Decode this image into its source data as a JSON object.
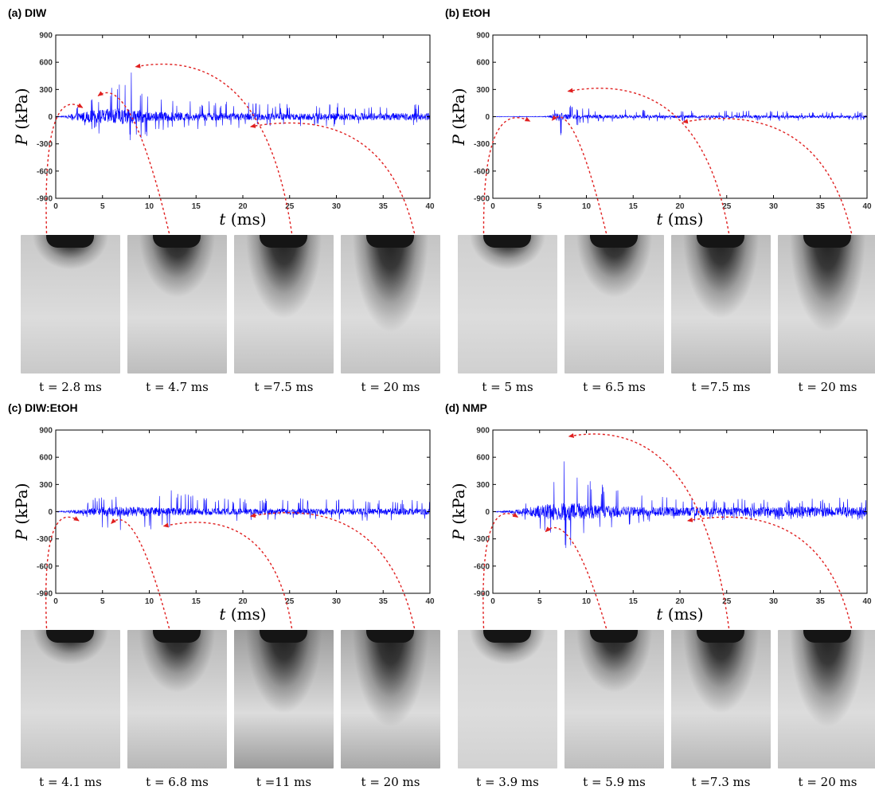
{
  "chart_data": [
    {
      "type": "line",
      "panel_label": "(a) DIW",
      "xlabel_var": "t",
      "xlabel_unit": "(ms)",
      "ylabel_var": "P",
      "ylabel_unit": "(kPa)",
      "xlim": [
        0,
        40
      ],
      "ylim": [
        -900,
        900
      ],
      "xticks": [
        0,
        5,
        10,
        15,
        20,
        25,
        30,
        35,
        40
      ],
      "yticks": [
        900,
        600,
        300,
        0,
        -300,
        -600,
        -900
      ],
      "line_color": "#0000ff",
      "arrow_color": "#e02020",
      "grid": false,
      "envelope": {
        "t": [
          0,
          1,
          2,
          3,
          4,
          5,
          6,
          7,
          8,
          9,
          10,
          12,
          15,
          20,
          25,
          30,
          35,
          40
        ],
        "max_peak": [
          5,
          10,
          100,
          180,
          250,
          280,
          350,
          420,
          540,
          300,
          250,
          200,
          180,
          160,
          150,
          150,
          140,
          140
        ],
        "min_peak": [
          -5,
          -10,
          -60,
          -120,
          -150,
          -250,
          -350,
          -450,
          -300,
          -250,
          -200,
          -180,
          -150,
          -130,
          -120,
          -110,
          -100,
          -100
        ],
        "noise": [
          3,
          8,
          40,
          60,
          70,
          80,
          90,
          90,
          80,
          70,
          60,
          50,
          45,
          40,
          40,
          40,
          40,
          40
        ]
      },
      "snapshots": [
        {
          "label": "t = 2.8 ms",
          "t": 2.8,
          "arrow_to": [
            3.2,
            100
          ]
        },
        {
          "label": "t = 4.7 ms",
          "t": 4.7,
          "arrow_to": [
            4.2,
            230
          ]
        },
        {
          "label": "t =7.5 ms",
          "t": 7.5,
          "arrow_to": [
            8.2,
            550
          ]
        },
        {
          "label": "t = 20 ms",
          "t": 20,
          "arrow_to": [
            20.5,
            -110
          ]
        }
      ]
    },
    {
      "type": "line",
      "panel_label": "(b) EtOH",
      "xlabel_var": "t",
      "xlabel_unit": "(ms)",
      "ylabel_var": "P",
      "ylabel_unit": "(kPa)",
      "xlim": [
        0,
        40
      ],
      "ylim": [
        -900,
        900
      ],
      "xticks": [
        0,
        5,
        10,
        15,
        20,
        25,
        30,
        35,
        40
      ],
      "yticks": [
        900,
        600,
        300,
        0,
        -300,
        -600,
        -900
      ],
      "line_color": "#0000ff",
      "arrow_color": "#e02020",
      "grid": false,
      "envelope": {
        "t": [
          0,
          5,
          6,
          6.5,
          7,
          7.5,
          8,
          9,
          10,
          12,
          15,
          20,
          25,
          30,
          35,
          40
        ],
        "max_peak": [
          5,
          5,
          10,
          60,
          200,
          240,
          150,
          120,
          100,
          90,
          80,
          70,
          70,
          70,
          60,
          60
        ],
        "min_peak": [
          -5,
          -5,
          -10,
          -100,
          -250,
          -200,
          -120,
          -100,
          -80,
          -60,
          -60,
          -50,
          -50,
          -50,
          -40,
          -40
        ],
        "noise": [
          3,
          3,
          6,
          30,
          45,
          40,
          30,
          25,
          22,
          20,
          18,
          16,
          16,
          16,
          15,
          15
        ]
      },
      "snapshots": [
        {
          "label": "t = 5 ms",
          "t": 5,
          "arrow_to": [
            4.3,
            -50
          ]
        },
        {
          "label": "t = 6.5 ms",
          "t": 6.5,
          "arrow_to": [
            6.0,
            -40
          ]
        },
        {
          "label": "t =7.5 ms",
          "t": 7.5,
          "arrow_to": [
            7.7,
            280
          ]
        },
        {
          "label": "t = 20 ms",
          "t": 20,
          "arrow_to": [
            20.0,
            -60
          ]
        }
      ]
    },
    {
      "type": "line",
      "panel_label": "(c) DIW:EtOH",
      "xlabel_var": "t",
      "xlabel_unit": "(ms)",
      "ylabel_var": "P",
      "ylabel_unit": "(kPa)",
      "xlim": [
        0,
        40
      ],
      "ylim": [
        -900,
        900
      ],
      "xticks": [
        0,
        5,
        10,
        15,
        20,
        25,
        30,
        35,
        40
      ],
      "yticks": [
        900,
        600,
        300,
        0,
        -300,
        -600,
        -900
      ],
      "line_color": "#0000ff",
      "arrow_color": "#e02020",
      "grid": false,
      "envelope": {
        "t": [
          0,
          1,
          2,
          3,
          4,
          5,
          6,
          7,
          8,
          10,
          12,
          15,
          20,
          25,
          30,
          35,
          40
        ],
        "max_peak": [
          5,
          10,
          30,
          60,
          150,
          200,
          220,
          240,
          250,
          250,
          280,
          180,
          150,
          150,
          140,
          140,
          130
        ],
        "min_peak": [
          -5,
          -10,
          -30,
          -60,
          -120,
          -180,
          -200,
          -220,
          -240,
          -230,
          -200,
          -150,
          -120,
          -110,
          -100,
          -100,
          -90
        ],
        "noise": [
          3,
          10,
          20,
          30,
          40,
          50,
          55,
          55,
          55,
          50,
          45,
          40,
          35,
          35,
          35,
          35,
          35
        ]
      },
      "snapshots": [
        {
          "label": "t = 4.1 ms",
          "t": 4.1,
          "arrow_to": [
            2.8,
            -100
          ]
        },
        {
          "label": "t = 6.8 ms",
          "t": 6.8,
          "arrow_to": [
            5.6,
            -130
          ]
        },
        {
          "label": "t =11 ms",
          "t": 11,
          "arrow_to": [
            11.2,
            -160
          ]
        },
        {
          "label": "t = 20 ms",
          "t": 20,
          "arrow_to": [
            20.5,
            -50
          ]
        }
      ]
    },
    {
      "type": "line",
      "panel_label": "(d) NMP",
      "xlabel_var": "t",
      "xlabel_unit": "(ms)",
      "ylabel_var": "P",
      "ylabel_unit": "(kPa)",
      "xlim": [
        0,
        40
      ],
      "ylim": [
        -900,
        900
      ],
      "xticks": [
        0,
        5,
        10,
        15,
        20,
        25,
        30,
        35,
        40
      ],
      "yticks": [
        900,
        600,
        300,
        0,
        -300,
        -600,
        -900
      ],
      "line_color": "#0000ff",
      "arrow_color": "#e02020",
      "grid": false,
      "envelope": {
        "t": [
          0,
          2,
          3,
          4,
          5,
          6,
          7,
          7.3,
          8,
          9,
          10,
          12,
          15,
          20,
          25,
          30,
          35,
          40
        ],
        "max_peak": [
          5,
          20,
          60,
          150,
          250,
          350,
          500,
          800,
          550,
          500,
          400,
          300,
          200,
          150,
          150,
          140,
          150,
          160
        ],
        "min_peak": [
          -5,
          -20,
          -60,
          -150,
          -250,
          -350,
          -450,
          -650,
          -400,
          -350,
          -300,
          -200,
          -150,
          -120,
          -110,
          -100,
          -100,
          -100
        ],
        "noise": [
          3,
          15,
          30,
          50,
          70,
          90,
          100,
          100,
          100,
          95,
          90,
          70,
          55,
          50,
          50,
          55,
          55,
          55
        ]
      },
      "snapshots": [
        {
          "label": "t = 3.9 ms",
          "t": 3.9,
          "arrow_to": [
            3.0,
            -60
          ]
        },
        {
          "label": "t = 5.9 ms",
          "t": 5.9,
          "arrow_to": [
            5.3,
            -220
          ]
        },
        {
          "label": "t =7.3 ms",
          "t": 7.3,
          "arrow_to": [
            7.8,
            830
          ]
        },
        {
          "label": "t = 20 ms",
          "t": 20,
          "arrow_to": [
            20.5,
            -100
          ]
        }
      ]
    }
  ]
}
